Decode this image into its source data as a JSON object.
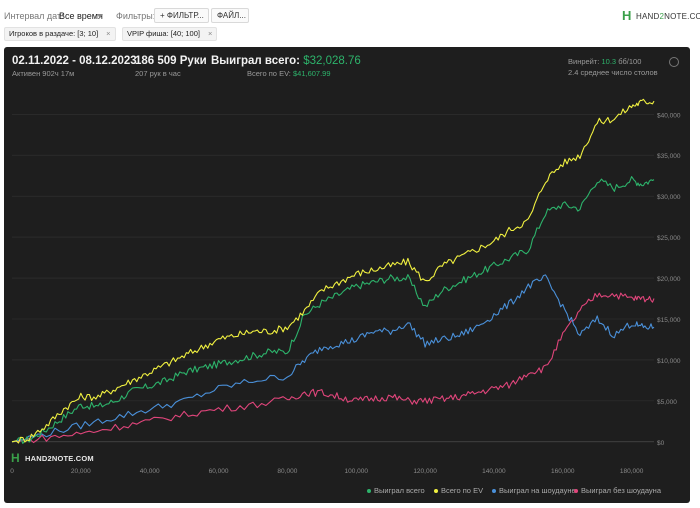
{
  "filters": {
    "interval_label": "Интервал дат:",
    "interval_value": "Все время",
    "filters_label": "Фильтры:",
    "add_filter_button": "+ ФИЛЬТР...",
    "file_button": "ФАЙЛ...",
    "chips": [
      {
        "label": "Игроков в раздаче: [3; 10]"
      },
      {
        "label": "VPIP фиша: [40; 100]"
      }
    ],
    "chip_close": "×"
  },
  "logo": {
    "mark": "H",
    "name_a": "HAND",
    "name_b": "2",
    "name_c": "NOTE.COM"
  },
  "stats": {
    "date_range": "02.11.2022 - 08.12.2023",
    "active": "Активен 902ч 17м",
    "hands": "186 509 Руки",
    "hands_per_hour": "207 рук в час",
    "won_label": "Выиграл всего:",
    "won_value": "$32,028.76",
    "ev_label": "Всего по EV:",
    "ev_value": "$41,607.99",
    "winrate_label": "Винрейт:",
    "winrate_value": "10.3",
    "winrate_unit": "бб/100",
    "tables": "2.4 среднее число столов"
  },
  "watermark": {
    "mark": "H",
    "name": "HAND2NOTE.COM"
  },
  "colors": {
    "won": "#2db36b",
    "ev": "#f0f040",
    "showdown": "#4a90d9",
    "no_showdown": "#e0457b"
  },
  "chart_data": {
    "type": "line",
    "x_ticks": [
      "0",
      "20,000",
      "40,000",
      "60,000",
      "80,000",
      "100,000",
      "120,000",
      "140,000",
      "160,000",
      "180,000"
    ],
    "y_ticks": [
      "$0",
      "$5,000",
      "$10,000",
      "$15,000",
      "$20,000",
      "$25,000",
      "$30,000",
      "$35,000",
      "$40,000"
    ],
    "xlim": [
      0,
      186509
    ],
    "ylim": [
      -1000,
      41500
    ],
    "series": [
      {
        "name": "Выиграл всего",
        "color": "#2db36b",
        "x": [
          0,
          5000,
          10000,
          15000,
          20000,
          25000,
          30000,
          35000,
          40000,
          45000,
          50000,
          55000,
          60000,
          65000,
          70000,
          75000,
          80000,
          85000,
          90000,
          95000,
          100000,
          105000,
          110000,
          115000,
          120000,
          125000,
          130000,
          135000,
          140000,
          145000,
          150000,
          155000,
          160000,
          165000,
          170000,
          175000,
          180000,
          183000,
          186509
        ],
        "y": [
          0,
          300,
          1500,
          3000,
          4500,
          4300,
          5000,
          6200,
          6800,
          7500,
          8500,
          9000,
          9500,
          10000,
          10500,
          11000,
          11000,
          15500,
          17000,
          18000,
          19000,
          19500,
          20000,
          20000,
          16500,
          18500,
          19500,
          20500,
          21500,
          22500,
          23500,
          28000,
          29000,
          28500,
          32000,
          31000,
          32000,
          31500,
          32029
        ]
      },
      {
        "name": "Всего по EV",
        "color": "#f0f040",
        "x": [
          0,
          5000,
          10000,
          15000,
          20000,
          25000,
          30000,
          35000,
          40000,
          45000,
          50000,
          55000,
          60000,
          65000,
          70000,
          75000,
          80000,
          85000,
          90000,
          95000,
          100000,
          105000,
          110000,
          115000,
          120000,
          125000,
          130000,
          135000,
          140000,
          145000,
          150000,
          155000,
          160000,
          165000,
          170000,
          175000,
          180000,
          183000,
          186509
        ],
        "y": [
          0,
          500,
          2000,
          4000,
          5500,
          5500,
          6500,
          7500,
          8500,
          9500,
          10500,
          11500,
          12500,
          13000,
          13500,
          13500,
          14000,
          16000,
          18500,
          19500,
          20500,
          21000,
          21500,
          22000,
          19500,
          21500,
          22500,
          23500,
          24500,
          26000,
          27000,
          32000,
          34000,
          35000,
          39000,
          39500,
          41000,
          41500,
          41608
        ]
      },
      {
        "name": "Выиграл на шоудауне",
        "color": "#4a90d9",
        "x": [
          0,
          10000,
          20000,
          30000,
          40000,
          50000,
          60000,
          70000,
          80000,
          85000,
          90000,
          95000,
          100000,
          105000,
          110000,
          115000,
          120000,
          125000,
          130000,
          135000,
          140000,
          145000,
          150000,
          155000,
          160000,
          165000,
          170000,
          175000,
          180000,
          183000,
          186509
        ],
        "y": [
          0,
          1000,
          2000,
          3000,
          4000,
          5000,
          6500,
          7500,
          8000,
          10000,
          11500,
          12000,
          12500,
          13500,
          13500,
          14500,
          12000,
          12500,
          13000,
          14000,
          15500,
          17000,
          19000,
          20000,
          16500,
          13000,
          15000,
          13000,
          14500,
          14000,
          14000
        ]
      },
      {
        "name": "Выиграл без шоудауна",
        "color": "#e0457b",
        "x": [
          0,
          10000,
          20000,
          30000,
          40000,
          50000,
          60000,
          70000,
          80000,
          85000,
          90000,
          95000,
          100000,
          105000,
          110000,
          115000,
          120000,
          125000,
          130000,
          135000,
          140000,
          145000,
          150000,
          155000,
          160000,
          165000,
          170000,
          175000,
          180000,
          183000,
          186509
        ],
        "y": [
          0,
          500,
          1000,
          1800,
          2500,
          3300,
          4000,
          4500,
          5200,
          6000,
          6000,
          5500,
          5000,
          5300,
          5500,
          5000,
          5000,
          5200,
          5500,
          6000,
          6500,
          7000,
          8500,
          9000,
          13000,
          16000,
          18000,
          18000,
          17500,
          17500,
          17500
        ]
      }
    ]
  },
  "legend": [
    {
      "label": "Выиграл всего",
      "color": "#2db36b"
    },
    {
      "label": "Всего по EV",
      "color": "#f0f040"
    },
    {
      "label": "Выиграл на шоудауне",
      "color": "#4a90d9"
    },
    {
      "label": "Выиграл без шоудауна",
      "color": "#e0457b"
    }
  ]
}
